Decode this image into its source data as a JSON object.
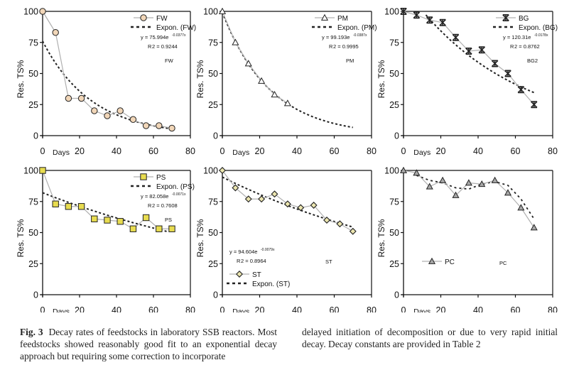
{
  "figure": {
    "caption_label": "Fig. 3",
    "caption_left": "Decay rates of feedstocks in laboratory SSB reactors. Most feedstocks showed reasonably good fit to an exponential decay approach but requiring some correction to incorporate",
    "caption_right": "delayed initiation of decomposition or due to very rapid initial decay. Decay constants are provided in Table 2"
  },
  "colors": {
    "data_line": "#b0b0b0",
    "trend_line": "#222222",
    "fw_marker": "#f1d6b8",
    "pm_marker": "#ffffff",
    "ps_marker": "#e8dc50",
    "st_marker": "#ece6b0",
    "pc_marker": "#a8a8a8"
  },
  "chart_data": [
    {
      "id": "FW",
      "type": "line",
      "marker": "circle",
      "xlabel": "Days",
      "ylabel": "Res. TS%",
      "xlim": [
        0,
        80
      ],
      "ylim": [
        0,
        100
      ],
      "xticks": [
        0,
        20,
        40,
        60,
        80
      ],
      "yticks": [
        0,
        25,
        50,
        75,
        100
      ],
      "x": [
        0,
        7,
        14,
        21,
        28,
        35,
        42,
        49,
        56,
        63,
        70
      ],
      "values": [
        100,
        83,
        30,
        30,
        20,
        16,
        20,
        13,
        8,
        8,
        6
      ],
      "trendline": {
        "a": 75.994,
        "k": 0.0377,
        "x_range": [
          0,
          70
        ]
      },
      "legend": {
        "series": "FW",
        "trend": "Expon. (FW)",
        "position": "top-right"
      },
      "equation": "y = 75.994e",
      "exponent": "-0.0377x",
      "r2_label": "R",
      "r2_value": "2 = 0.9244",
      "panel_label": "FW",
      "equation_position": "top-right"
    },
    {
      "id": "PM",
      "type": "line",
      "marker": "triangle",
      "xlabel": "Days",
      "ylabel": "Res. TS%",
      "xlim": [
        0,
        80
      ],
      "ylim": [
        0,
        100
      ],
      "xticks": [
        0,
        20,
        40,
        60,
        80
      ],
      "yticks": [
        0,
        25,
        50,
        75,
        100
      ],
      "x": [
        0,
        7,
        14,
        21,
        28,
        35
      ],
      "values": [
        100,
        75,
        58,
        44,
        33,
        26
      ],
      "trendline": {
        "a": 99.193,
        "k": 0.0387,
        "x_range": [
          0,
          70
        ]
      },
      "legend": {
        "series": "PM",
        "trend": "Expon. (PM)",
        "position": "top-right"
      },
      "equation": "y = 99.193e",
      "exponent": "-0.0387x",
      "r2_label": "R",
      "r2_value": "2 = 0.9995",
      "panel_label": "PM",
      "equation_position": "top-right"
    },
    {
      "id": "BG",
      "type": "line",
      "marker": "asterisk",
      "xlabel": "Days",
      "ylabel": "Res. TS%",
      "xlim": [
        0,
        80
      ],
      "ylim": [
        0,
        100
      ],
      "xticks": [
        0,
        20,
        40,
        60,
        80
      ],
      "yticks": [
        0,
        25,
        50,
        75,
        100
      ],
      "x": [
        0,
        7,
        14,
        21,
        28,
        35,
        42,
        49,
        56,
        63,
        70
      ],
      "values": [
        100,
        97,
        93,
        91,
        79,
        68,
        69,
        58,
        50,
        37,
        25
      ],
      "trendline": {
        "a": 120.31,
        "k": 0.0178,
        "x_range": [
          12,
          70
        ]
      },
      "legend": {
        "series": "BG",
        "trend": "Expon. (BG)",
        "position": "top-right"
      },
      "equation": "y = 120.31e",
      "exponent": "-0.0178x",
      "r2_label": "R",
      "r2_value": "2 = 0.8762",
      "panel_label": "BG2",
      "equation_position": "top-right"
    },
    {
      "id": "PS",
      "type": "line",
      "marker": "square",
      "xlabel": "Days",
      "ylabel": "Res. TS%",
      "xlim": [
        0,
        80
      ],
      "ylim": [
        0,
        100
      ],
      "xticks": [
        0,
        20,
        40,
        60,
        80
      ],
      "yticks": [
        0,
        25,
        50,
        75,
        100
      ],
      "x": [
        0,
        7,
        14,
        21,
        28,
        35,
        42,
        49,
        56,
        63,
        70
      ],
      "values": [
        100,
        73,
        71,
        71,
        61,
        60,
        59,
        53,
        62,
        53,
        53
      ],
      "trendline": {
        "a": 82.058,
        "k": 0.0071,
        "x_range": [
          0,
          68
        ]
      },
      "legend": {
        "series": "PS",
        "trend": "Expon. (PS)",
        "position": "top-right"
      },
      "equation": "y = 82.058e",
      "exponent": "-0.0071x",
      "r2_label": "R",
      "r2_value": "2 = 0.7608",
      "panel_label": "PS",
      "equation_position": "top-right"
    },
    {
      "id": "ST",
      "type": "line",
      "marker": "diamond",
      "xlabel": "Days",
      "ylabel": "Res. TS%",
      "xlim": [
        0,
        80
      ],
      "ylim": [
        0,
        100
      ],
      "xticks": [
        0,
        20,
        40,
        60,
        80
      ],
      "yticks": [
        0,
        25,
        50,
        75,
        100
      ],
      "x": [
        0,
        7,
        14,
        21,
        28,
        35,
        42,
        49,
        56,
        63,
        70
      ],
      "values": [
        100,
        86,
        77,
        77,
        81,
        73,
        70,
        72,
        60,
        57,
        51
      ],
      "trendline": {
        "a": 94.604,
        "k": 0.0079,
        "x_range": [
          0,
          70
        ]
      },
      "legend": {
        "series": "ST",
        "trend": "Expon. (ST)",
        "position": "bottom-left"
      },
      "equation": "y = 94.604e",
      "exponent": "-0.0079x",
      "r2_label": "R",
      "r2_value": "2 = 0.8964",
      "panel_label": "ST",
      "equation_position": "bottom-left"
    },
    {
      "id": "PC",
      "type": "line",
      "marker": "triangle",
      "xlabel": "Days",
      "ylabel": "Res. TS%",
      "xlim": [
        0,
        80
      ],
      "ylim": [
        0,
        100
      ],
      "xticks": [
        0,
        20,
        40,
        60,
        80
      ],
      "yticks": [
        0,
        25,
        50,
        75,
        100
      ],
      "x": [
        0,
        7,
        14,
        21,
        28,
        35,
        42,
        49,
        56,
        63,
        70
      ],
      "values": [
        100,
        98,
        87,
        92,
        80,
        90,
        89,
        92,
        82,
        70,
        54
      ],
      "trend_points": {
        "x": [
          7,
          14,
          21,
          28,
          35,
          42,
          49,
          56,
          63,
          70
        ],
        "values": [
          96,
          92,
          90,
          86,
          85,
          89,
          91,
          88,
          77,
          61
        ]
      },
      "legend": {
        "series": "PC",
        "position": "bottom-left"
      },
      "panel_label": "PC"
    }
  ]
}
